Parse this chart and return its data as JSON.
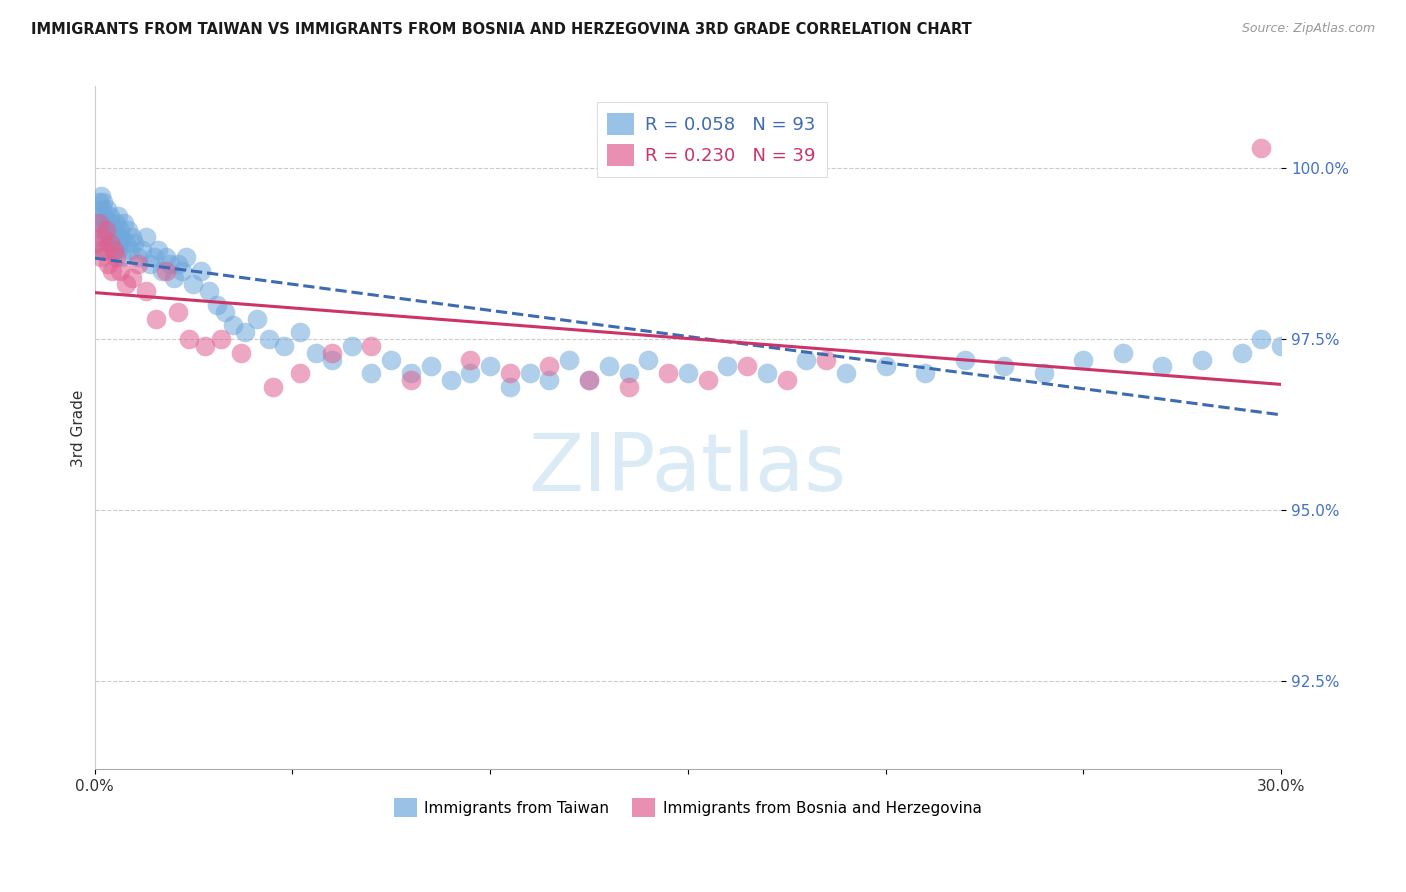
{
  "title": "IMMIGRANTS FROM TAIWAN VS IMMIGRANTS FROM BOSNIA AND HERZEGOVINA 3RD GRADE CORRELATION CHART",
  "source": "Source: ZipAtlas.com",
  "ylabel": "3rd Grade",
  "y_ticks": [
    92.5,
    95.0,
    97.5,
    100.0
  ],
  "y_tick_labels": [
    "92.5%",
    "95.0%",
    "97.5%",
    "100.0%"
  ],
  "x_min": 0.0,
  "x_max": 30.0,
  "y_min": 91.2,
  "y_max": 101.2,
  "taiwan_color": "#6fa8dc",
  "bosnia_color": "#e06090",
  "taiwan_R": 0.058,
  "taiwan_N": 93,
  "bosnia_R": 0.23,
  "bosnia_N": 39,
  "taiwan_line_color": "#3d6bb3",
  "bosnia_line_color": "#cc3366",
  "legend_label_taiwan": "Immigrants from Taiwan",
  "legend_label_bosnia": "Immigrants from Bosnia and Herzegovina",
  "taiwan_x": [
    0.05,
    0.08,
    0.1,
    0.12,
    0.15,
    0.18,
    0.2,
    0.22,
    0.25,
    0.28,
    0.3,
    0.32,
    0.35,
    0.38,
    0.4,
    0.42,
    0.45,
    0.48,
    0.5,
    0.52,
    0.55,
    0.58,
    0.6,
    0.62,
    0.65,
    0.68,
    0.7,
    0.75,
    0.8,
    0.85,
    0.9,
    0.95,
    1.0,
    1.1,
    1.2,
    1.3,
    1.4,
    1.5,
    1.6,
    1.7,
    1.8,
    1.9,
    2.0,
    2.1,
    2.2,
    2.3,
    2.5,
    2.7,
    2.9,
    3.1,
    3.3,
    3.5,
    3.8,
    4.1,
    4.4,
    4.8,
    5.2,
    5.6,
    6.0,
    6.5,
    7.0,
    7.5,
    8.0,
    8.5,
    9.0,
    9.5,
    10.0,
    10.5,
    11.0,
    11.5,
    12.0,
    12.5,
    13.0,
    13.5,
    14.0,
    15.0,
    16.0,
    17.0,
    18.0,
    19.0,
    20.0,
    21.0,
    22.0,
    23.0,
    24.0,
    25.0,
    26.0,
    27.0,
    28.0,
    29.0,
    29.5,
    30.0,
    30.5
  ],
  "taiwan_y": [
    98.8,
    99.2,
    99.5,
    99.3,
    99.6,
    99.4,
    99.1,
    99.5,
    99.3,
    99.0,
    99.2,
    99.4,
    99.1,
    99.3,
    99.0,
    99.2,
    98.9,
    99.1,
    98.8,
    99.0,
    99.2,
    98.8,
    99.3,
    98.9,
    99.1,
    99.0,
    98.7,
    99.2,
    98.9,
    99.1,
    98.8,
    99.0,
    98.9,
    98.7,
    98.8,
    99.0,
    98.6,
    98.7,
    98.8,
    98.5,
    98.7,
    98.6,
    98.4,
    98.6,
    98.5,
    98.7,
    98.3,
    98.5,
    98.2,
    98.0,
    97.9,
    97.7,
    97.6,
    97.8,
    97.5,
    97.4,
    97.6,
    97.3,
    97.2,
    97.4,
    97.0,
    97.2,
    97.0,
    97.1,
    96.9,
    97.0,
    97.1,
    96.8,
    97.0,
    96.9,
    97.2,
    96.9,
    97.1,
    97.0,
    97.2,
    97.0,
    97.1,
    97.0,
    97.2,
    97.0,
    97.1,
    97.0,
    97.2,
    97.1,
    97.0,
    97.2,
    97.3,
    97.1,
    97.2,
    97.3,
    97.5,
    97.4,
    97.5
  ],
  "bosnia_x": [
    0.05,
    0.1,
    0.15,
    0.2,
    0.25,
    0.3,
    0.35,
    0.4,
    0.45,
    0.5,
    0.55,
    0.65,
    0.8,
    0.95,
    1.1,
    1.3,
    1.55,
    1.8,
    2.1,
    2.4,
    2.8,
    3.2,
    3.7,
    4.5,
    5.2,
    6.0,
    7.0,
    8.0,
    9.5,
    10.5,
    11.5,
    12.5,
    13.5,
    14.5,
    15.5,
    16.5,
    17.5,
    18.5,
    29.5
  ],
  "bosnia_y": [
    98.9,
    99.2,
    98.7,
    99.0,
    98.8,
    99.1,
    98.6,
    98.9,
    98.5,
    98.8,
    98.7,
    98.5,
    98.3,
    98.4,
    98.6,
    98.2,
    97.8,
    98.5,
    97.9,
    97.5,
    97.4,
    97.5,
    97.3,
    96.8,
    97.0,
    97.3,
    97.4,
    96.9,
    97.2,
    97.0,
    97.1,
    96.9,
    96.8,
    97.0,
    96.9,
    97.1,
    96.9,
    97.2,
    100.3
  ]
}
